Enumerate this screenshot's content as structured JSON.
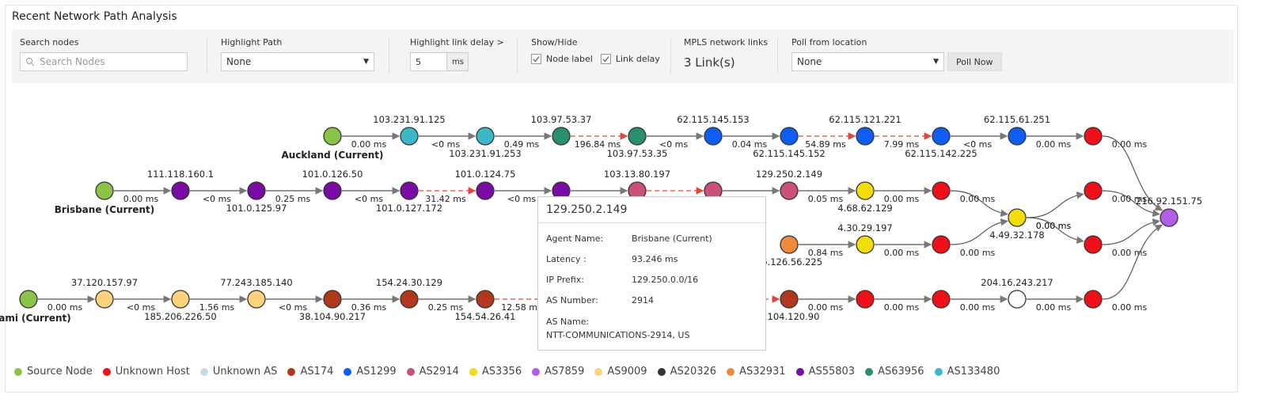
{
  "header": {
    "title": "Recent Network Path Analysis"
  },
  "toolbar": {
    "search": {
      "label": "Search nodes",
      "placeholder": "Search Nodes"
    },
    "highlight_path": {
      "label": "Highlight Path",
      "value": "None"
    },
    "link_delay": {
      "label": "Highlight link delay >",
      "value": "5",
      "unit": "ms"
    },
    "show_hide": {
      "label": "Show/Hide",
      "options": [
        {
          "label": "Node label",
          "checked": true
        },
        {
          "label": "Link delay",
          "checked": true
        }
      ]
    },
    "mpls": {
      "label": "MPLS network links",
      "value": "3 Link(s)"
    },
    "poll": {
      "label": "Poll from location",
      "value": "None",
      "button": "Poll Now"
    }
  },
  "nodes": [
    {
      "label": "Auckland (Current)",
      "color": "#8bc34a",
      "source": true
    },
    {
      "label": "103.231.91.125",
      "color": "#3bb8c7"
    },
    {
      "label": "103.231.91.253",
      "color": "#3bb8c7"
    },
    {
      "label": "103.97.53.37",
      "color": "#2a8f6e"
    },
    {
      "label": "103.97.53.35",
      "color": "#2a8f6e"
    },
    {
      "label": "62.115.145.153",
      "color": "#0d5ef5"
    },
    {
      "label": "62.115.145.152",
      "color": "#0d5ef5"
    },
    {
      "label": "62.115.121.221",
      "color": "#0d5ef5"
    },
    {
      "label": "62.115.142.225",
      "color": "#0d5ef5"
    },
    {
      "label": "62.115.61.251",
      "color": "#0d5ef5"
    },
    {
      "color": "#f0101a"
    },
    {
      "label": "216.92.151.75",
      "color": "#b35ce8"
    },
    {
      "label": "Brisbane (Current)",
      "color": "#8bc34a",
      "source": true
    },
    {
      "label": "111.118.160.1",
      "color": "#7a0aa5"
    },
    {
      "label": "101.0.125.97",
      "color": "#7a0aa5"
    },
    {
      "label": "101.0.126.50",
      "color": "#7a0aa5"
    },
    {
      "label": "101.0.127.172",
      "color": "#7a0aa5"
    },
    {
      "label": "101.0.124.75",
      "color": "#7a0aa5"
    },
    {
      "color": "#7a0aa5"
    },
    {
      "label": "103.13.80.197",
      "color": "#c9517a"
    },
    {
      "color": "#c9517a"
    },
    {
      "label": "129.250.2.149",
      "color": "#c9517a"
    },
    {
      "label": "4.68.62.129",
      "color": "#f2dc0a"
    },
    {
      "color": "#f0101a"
    },
    {
      "label": "4.49.32.178",
      "color": "#f2dc0a"
    },
    {
      "color": "#f0101a"
    },
    {
      "color": "#f0101a"
    },
    {
      "label": "16.126.56.225",
      "color": "#ef8a3a"
    },
    {
      "label": "4.30.29.197",
      "color": "#f2dc0a"
    },
    {
      "color": "#f0101a"
    },
    {
      "label": "Miami (Current)",
      "color": "#8bc34a",
      "source": true
    },
    {
      "label": "37.120.157.97",
      "color": "#fdd27f"
    },
    {
      "label": "185.206.226.50",
      "color": "#fdd27f"
    },
    {
      "label": "77.243.185.140",
      "color": "#fdd27f"
    },
    {
      "label": "38.104.90.217",
      "color": "#b0381c"
    },
    {
      "label": "154.24.30.129",
      "color": "#b0381c"
    },
    {
      "label": "154.54.26.41",
      "color": "#b0381c"
    },
    {
      "label": "8.104.120.90",
      "color": "#b0381c"
    },
    {
      "color": "#f0101a"
    },
    {
      "color": "#f0101a"
    },
    {
      "label": "204.16.243.217",
      "color": "#ffffff"
    },
    {
      "color": "#f0101a"
    }
  ],
  "links": [
    {
      "from": 0,
      "to": 1,
      "delay": "0.00 ms"
    },
    {
      "from": 1,
      "to": 2,
      "delay": "<0 ms"
    },
    {
      "from": 2,
      "to": 3,
      "delay": "0.49 ms"
    },
    {
      "from": 3,
      "to": 4,
      "delay": "196.84 ms",
      "highlight": true
    },
    {
      "from": 4,
      "to": 5,
      "delay": "<0 ms"
    },
    {
      "from": 5,
      "to": 6,
      "delay": "0.04 ms"
    },
    {
      "from": 6,
      "to": 7,
      "delay": "54.89 ms",
      "highlight": true
    },
    {
      "from": 7,
      "to": 8,
      "delay": "7.99 ms",
      "highlight": true
    },
    {
      "from": 8,
      "to": 9,
      "delay": "<0 ms"
    },
    {
      "from": 9,
      "to": 10,
      "delay": "0.00 ms"
    },
    {
      "from": 10,
      "to": 11,
      "delay": "0.00 ms"
    },
    {
      "from": 12,
      "to": 13,
      "delay": "0.00 ms"
    },
    {
      "from": 13,
      "to": 14,
      "delay": "<0 ms"
    },
    {
      "from": 14,
      "to": 15,
      "delay": "0.25 ms"
    },
    {
      "from": 15,
      "to": 16,
      "delay": "<0 ms"
    },
    {
      "from": 16,
      "to": 17,
      "delay": "31.42 ms",
      "highlight": true
    },
    {
      "from": 17,
      "to": 18,
      "delay": "<0 ms"
    },
    {
      "from": 18,
      "to": 19
    },
    {
      "from": 19,
      "to": 20,
      "highlight": true
    },
    {
      "from": 20,
      "to": 21
    },
    {
      "from": 21,
      "to": 22,
      "delay": "0.05 ms"
    },
    {
      "from": 22,
      "to": 23,
      "delay": "0.00 ms"
    },
    {
      "from": 23,
      "to": 24,
      "delay": "0.00 ms"
    },
    {
      "from": 24,
      "to": 25,
      "delay": "0.00 ms"
    },
    {
      "from": 24,
      "to": 26,
      "delay": "0.00 ms"
    },
    {
      "from": 25,
      "to": 11,
      "delay": "0.00 ms"
    },
    {
      "from": 26,
      "to": 11,
      "delay": "0.00 ms"
    },
    {
      "from": 27,
      "to": 28,
      "delay": "0.84 ms"
    },
    {
      "from": 28,
      "to": 29,
      "delay": "0.00 ms"
    },
    {
      "from": 29,
      "to": 24,
      "delay": "0.00 ms"
    },
    {
      "from": 30,
      "to": 31,
      "delay": "0.00 ms"
    },
    {
      "from": 31,
      "to": 32,
      "delay": "<0 ms"
    },
    {
      "from": 32,
      "to": 33,
      "delay": "1.56 ms"
    },
    {
      "from": 33,
      "to": 34,
      "delay": "<0 ms"
    },
    {
      "from": 34,
      "to": 35,
      "delay": "0.36 ms"
    },
    {
      "from": 35,
      "to": 36,
      "delay": "0.25 ms"
    },
    {
      "from": 36,
      "to": 37,
      "delay": "12.58 ms",
      "highlight": true
    },
    {
      "from": 37,
      "to": 38,
      "delay": "0.00 ms"
    },
    {
      "from": 38,
      "to": 39,
      "delay": "0.00 ms"
    },
    {
      "from": 39,
      "to": 40,
      "delay": "0.00 ms"
    },
    {
      "from": 40,
      "to": 41,
      "delay": "0.00 ms"
    },
    {
      "from": 41,
      "to": 11,
      "delay": "0.00 ms"
    }
  ],
  "tooltip": {
    "title": "129.250.2.149",
    "rows": [
      {
        "key": "Agent Name:",
        "value": "Brisbane (Current)"
      },
      {
        "key": "Latency :",
        "value": "93.246 ms"
      },
      {
        "key": "IP Prefix:",
        "value": "129.250.0.0/16"
      },
      {
        "key": "AS Number:",
        "value": "2914"
      }
    ],
    "extra": {
      "key": "AS Name:",
      "value": "NTT-COMMUNICATIONS-2914, US"
    }
  },
  "legend": [
    {
      "label": "Source Node",
      "color": "#8bc34a"
    },
    {
      "label": "Unknown Host",
      "color": "#f0101a"
    },
    {
      "label": "Unknown AS",
      "color": "#c5dbea"
    },
    {
      "label": "AS174",
      "color": "#b0381c"
    },
    {
      "label": "AS1299",
      "color": "#0d5ef5"
    },
    {
      "label": "AS2914",
      "color": "#c9517a"
    },
    {
      "label": "AS3356",
      "color": "#f2dc0a"
    },
    {
      "label": "AS7859",
      "color": "#b35ce8"
    },
    {
      "label": "AS9009",
      "color": "#fdd27f"
    },
    {
      "label": "AS20326",
      "color": "#333333"
    },
    {
      "label": "AS32931",
      "color": "#ef8a3a"
    },
    {
      "label": "AS55803",
      "color": "#7a0aa5"
    },
    {
      "label": "AS63956",
      "color": "#2a8f6e"
    },
    {
      "label": "AS133480",
      "color": "#3bb8c7"
    }
  ]
}
